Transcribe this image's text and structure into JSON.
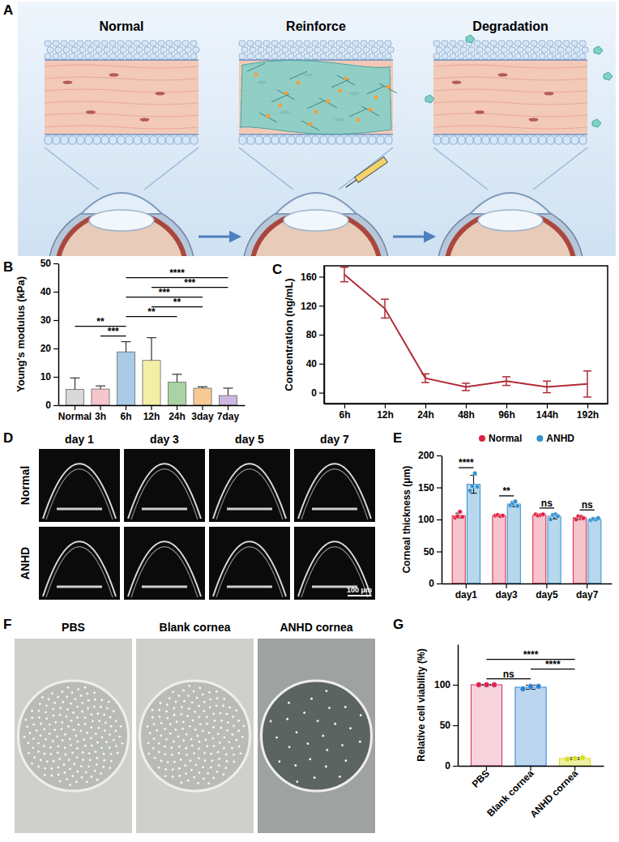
{
  "panel_letters": [
    "A",
    "B",
    "C",
    "D",
    "E",
    "F",
    "G"
  ],
  "illustration": {
    "stages": [
      "Normal",
      "Reinforce",
      "Degradation"
    ]
  },
  "chart_data": [
    {
      "type": "bar",
      "ylabel": "Young's modulus (kPa)",
      "categories": [
        "Normal",
        "3h",
        "6h",
        "12h",
        "24h",
        "3day",
        "7day"
      ],
      "values": [
        5.6,
        5.7,
        18.8,
        15.8,
        8.1,
        6.0,
        3.4
      ],
      "errors": [
        4.0,
        1.1,
        3.6,
        8.0,
        2.8,
        0.5,
        2.6
      ],
      "colors": [
        "#d9d9d9",
        "#f5c6cc",
        "#a9cbe6",
        "#f4efa6",
        "#a9d3a3",
        "#f7c995",
        "#cdb7e0"
      ],
      "ylim": [
        0,
        50
      ],
      "yticks": [
        0,
        10,
        20,
        30,
        40,
        50
      ],
      "significance": [
        {
          "from": "Normal",
          "to": "6h",
          "label": "**"
        },
        {
          "from": "3h",
          "to": "6h",
          "label": "***"
        },
        {
          "from": "6h",
          "to": "24h",
          "label": "**"
        },
        {
          "from": "12h",
          "to": "3day",
          "label": "**"
        },
        {
          "from": "6h",
          "to": "3day",
          "label": "***"
        },
        {
          "from": "12h",
          "to": "7day",
          "label": "***"
        },
        {
          "from": "6h",
          "to": "7day",
          "label": "****"
        }
      ]
    },
    {
      "type": "line",
      "ylabel": "Concentration (ng/mL)",
      "categories": [
        "6h",
        "12h",
        "24h",
        "48h",
        "96h",
        "144h",
        "192h"
      ],
      "values": [
        163,
        116,
        20,
        8,
        16,
        8,
        12
      ],
      "errors": [
        10,
        13,
        6,
        5,
        6,
        8,
        18
      ],
      "color": "#b02a37",
      "ylim": [
        -15,
        175
      ],
      "yticks": [
        0,
        40,
        80,
        120,
        160
      ]
    },
    {
      "type": "bar",
      "ylabel": "Corneal thickness (μm)",
      "categories": [
        "day1",
        "day3",
        "day5",
        "day7"
      ],
      "series": [
        {
          "name": "Normal",
          "color": "#f5c4cc",
          "values": [
            106,
            106,
            107,
            103
          ],
          "errors": [
            4,
            1,
            1,
            3
          ],
          "points": [
            [
              103,
              105,
              112,
              104
            ],
            [
              106,
              107,
              105,
              106
            ],
            [
              108,
              106,
              107,
              108
            ],
            [
              100,
              105,
              104,
              102
            ]
          ]
        },
        {
          "name": "ANHD",
          "color": "#b7d7ec",
          "values": [
            155,
            124,
            105,
            100
          ],
          "errors": [
            14,
            4,
            4,
            2
          ],
          "points": [
            [
              145,
              152,
              172,
              151
            ],
            [
              122,
              125,
              128,
              121
            ],
            [
              100,
              107,
              108,
              105
            ],
            [
              99,
              101,
              100,
              102
            ]
          ]
        }
      ],
      "legend": "top",
      "ylim": [
        0,
        200
      ],
      "yticks": [
        0,
        50,
        100,
        150,
        200
      ],
      "significance": [
        {
          "category": "day1",
          "label": "****"
        },
        {
          "category": "day3",
          "label": "**"
        },
        {
          "category": "day5",
          "label": "ns"
        },
        {
          "category": "day7",
          "label": "ns"
        }
      ]
    },
    {
      "type": "bar",
      "ylabel": "Relative cell viability (%)",
      "categories": [
        "PBS",
        "Blank cornea",
        "ANHD cornea"
      ],
      "values": [
        100,
        97,
        9
      ],
      "errors": [
        0.4,
        2.5,
        1.2
      ],
      "points": [
        [
          100,
          100,
          100
        ],
        [
          95,
          98,
          98
        ],
        [
          8,
          9,
          10
        ]
      ],
      "colors": [
        "#f7d4dd",
        "#bcd6ef",
        "#eef0a6"
      ],
      "ylim": [
        0,
        150
      ],
      "yticks": [
        0,
        50,
        100
      ],
      "significance": [
        {
          "from": "PBS",
          "to": "Blank cornea",
          "label": "ns"
        },
        {
          "from": "Blank cornea",
          "to": "ANHD cornea",
          "label": "****"
        },
        {
          "from": "PBS",
          "to": "ANHD cornea",
          "label": "****"
        }
      ]
    }
  ],
  "images": {
    "oct": {
      "columns": [
        "day 1",
        "day 3",
        "day 5",
        "day 7"
      ],
      "rows": [
        "Normal",
        "ANHD"
      ],
      "scale_bar": "100 μm"
    },
    "plates": {
      "labels": [
        "PBS",
        "Blank cornea",
        "ANHD cornea"
      ]
    }
  }
}
